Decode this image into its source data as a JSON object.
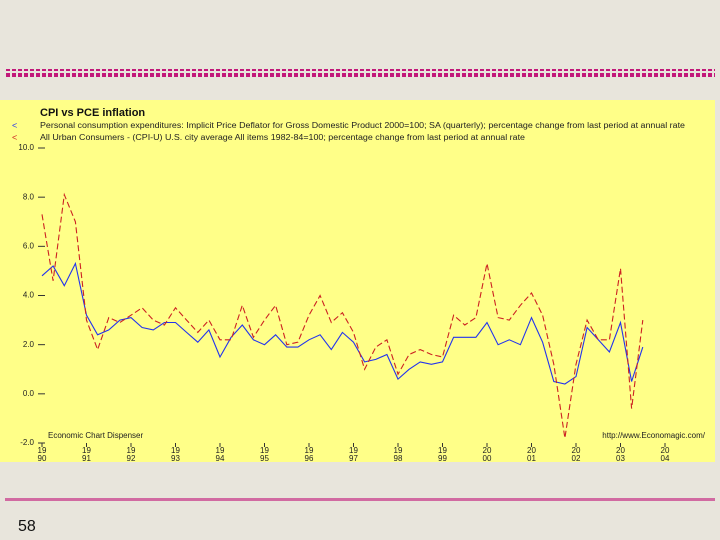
{
  "page_number": "58",
  "chart_data": {
    "type": "line",
    "title": "CPI vs PCE inflation",
    "source_left": "Economic Chart Dispenser",
    "source_right": "http://www.Economagic.com/",
    "x": [
      1990,
      1990.25,
      1990.5,
      1990.75,
      1991,
      1991.25,
      1991.5,
      1991.75,
      1992,
      1992.25,
      1992.5,
      1992.75,
      1993,
      1993.25,
      1993.5,
      1993.75,
      1994,
      1994.25,
      1994.5,
      1994.75,
      1995,
      1995.25,
      1995.5,
      1995.75,
      1996,
      1996.25,
      1996.5,
      1996.75,
      1997,
      1997.25,
      1997.5,
      1997.75,
      1998,
      1998.25,
      1998.5,
      1998.75,
      1999,
      1999.25,
      1999.5,
      1999.75,
      2000,
      2000.25,
      2000.5,
      2000.75,
      2001,
      2001.25,
      2001.5,
      2001.75,
      2002,
      2002.25,
      2002.5,
      2002.75,
      2003,
      2003.25,
      2003.5
    ],
    "series": [
      {
        "name": "Personal consumption expenditures: Implicit Price Deflator for Gross Domestic Product 2000=100; SA (quarterly); percentage change from last period at annual rate",
        "color": "#2233ee",
        "values": [
          4.8,
          5.2,
          4.4,
          5.3,
          3.2,
          2.4,
          2.6,
          3.0,
          3.1,
          2.7,
          2.6,
          2.9,
          2.9,
          2.5,
          2.1,
          2.6,
          1.5,
          2.3,
          2.8,
          2.2,
          2.0,
          2.4,
          1.9,
          1.9,
          2.2,
          2.4,
          1.8,
          2.5,
          2.1,
          1.3,
          1.4,
          1.6,
          0.6,
          1.0,
          1.3,
          1.2,
          1.3,
          2.3,
          2.3,
          2.3,
          2.9,
          2.0,
          2.2,
          2.0,
          3.1,
          2.1,
          0.5,
          0.4,
          0.7,
          2.7,
          2.2,
          1.7,
          2.9,
          0.5,
          1.9
        ]
      },
      {
        "name": "All Urban Consumers - (CPI-U) U.S. city average All items 1982-84=100; percentage change from last period at annual rate",
        "color": "#cc2222",
        "values": [
          7.3,
          4.6,
          8.1,
          7.0,
          3.0,
          1.8,
          3.1,
          2.9,
          3.2,
          3.5,
          3.0,
          2.8,
          3.5,
          3.0,
          2.5,
          3.0,
          2.2,
          2.2,
          3.6,
          2.3,
          3.0,
          3.6,
          2.0,
          2.1,
          3.2,
          4.0,
          2.9,
          3.3,
          2.5,
          1.0,
          1.9,
          2.2,
          0.8,
          1.6,
          1.8,
          1.6,
          1.5,
          3.2,
          2.8,
          3.1,
          5.3,
          3.1,
          3.0,
          3.6,
          4.1,
          3.2,
          1.2,
          -1.8,
          1.2,
          3.0,
          2.2,
          2.2,
          5.1,
          -0.6,
          3.0
        ]
      }
    ],
    "xlim": [
      1990,
      2004
    ],
    "xticks": [
      {
        "value": 1990,
        "label": [
          "19",
          "90"
        ]
      },
      {
        "value": 1991,
        "label": [
          "19",
          "91"
        ]
      },
      {
        "value": 1992,
        "label": [
          "19",
          "92"
        ]
      },
      {
        "value": 1993,
        "label": [
          "19",
          "93"
        ]
      },
      {
        "value": 1994,
        "label": [
          "19",
          "94"
        ]
      },
      {
        "value": 1995,
        "label": [
          "19",
          "95"
        ]
      },
      {
        "value": 1996,
        "label": [
          "19",
          "96"
        ]
      },
      {
        "value": 1997,
        "label": [
          "19",
          "97"
        ]
      },
      {
        "value": 1998,
        "label": [
          "19",
          "98"
        ]
      },
      {
        "value": 1999,
        "label": [
          "19",
          "99"
        ]
      },
      {
        "value": 2000,
        "label": [
          "20",
          "00"
        ]
      },
      {
        "value": 2001,
        "label": [
          "20",
          "01"
        ]
      },
      {
        "value": 2002,
        "label": [
          "20",
          "02"
        ]
      },
      {
        "value": 2003,
        "label": [
          "20",
          "03"
        ]
      },
      {
        "value": 2004,
        "label": [
          "20",
          "04"
        ]
      }
    ],
    "ylim": [
      -2,
      10
    ],
    "yticks": [
      {
        "value": 10,
        "label": "10.0"
      },
      {
        "value": 8,
        "label": "8.0"
      },
      {
        "value": 6,
        "label": "6.0"
      },
      {
        "value": 4,
        "label": "4.0"
      },
      {
        "value": 2,
        "label": "2.0"
      },
      {
        "value": 0,
        "label": "0.0"
      },
      {
        "value": -2,
        "label": "-2.0"
      }
    ],
    "grid": false
  }
}
